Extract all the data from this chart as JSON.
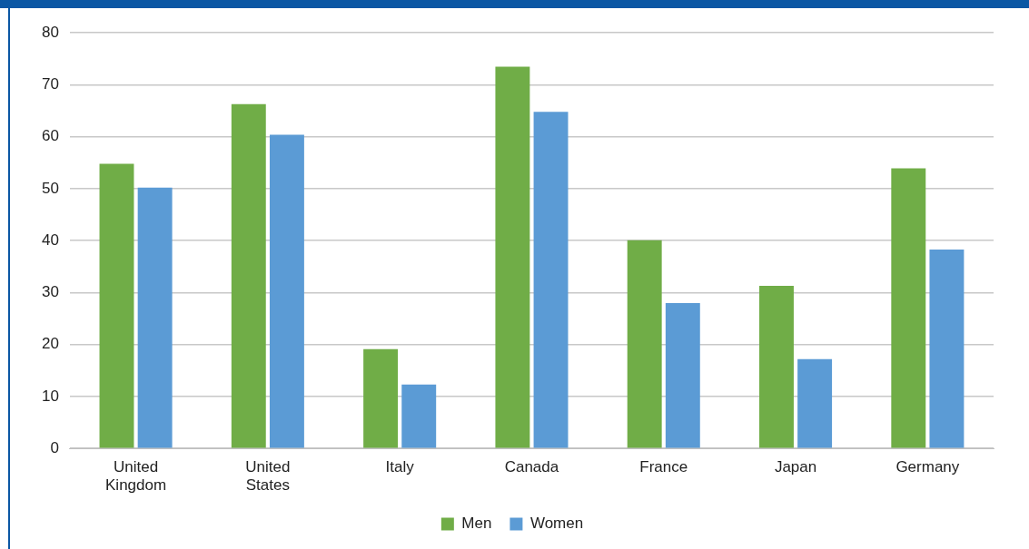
{
  "chart_data": {
    "type": "bar",
    "categories": [
      "United Kingdom",
      "United States",
      "Italy",
      "Canada",
      "France",
      "Japan",
      "Germany"
    ],
    "series": [
      {
        "name": "Men",
        "color": "#70ad47",
        "values": [
          54.8,
          66.3,
          19.1,
          73.5,
          40.1,
          31.3,
          53.9
        ]
      },
      {
        "name": "Women",
        "color": "#5b9bd5",
        "values": [
          50.2,
          60.4,
          12.3,
          64.8,
          28.0,
          17.2,
          38.3
        ]
      }
    ],
    "ylim": [
      0,
      80
    ],
    "yticks": [
      0,
      10,
      20,
      30,
      40,
      50,
      60,
      70,
      80
    ],
    "grid": "y",
    "legend": "bottom"
  }
}
